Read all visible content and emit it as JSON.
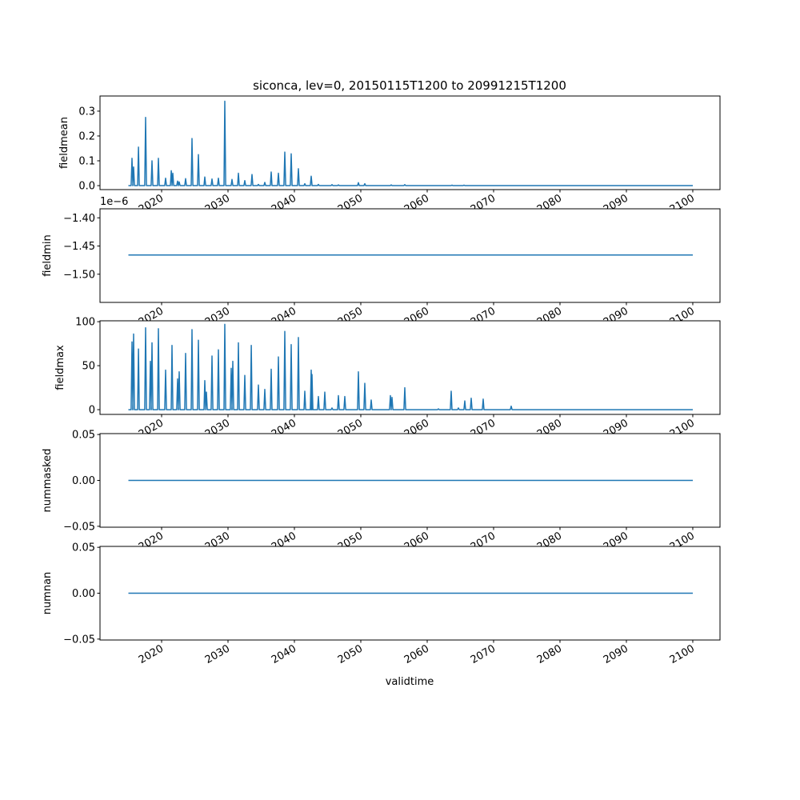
{
  "chart_data": {
    "type": "line",
    "title": "siconca, lev=0, 20150115T1200 to 20991215T1200",
    "xlabel": "validtime",
    "x_range": [
      2015.0,
      2100.0
    ],
    "xlim": [
      2010.72,
      2104.1
    ],
    "xticks": [
      2020,
      2030,
      2040,
      2050,
      2060,
      2070,
      2080,
      2090,
      2100
    ],
    "xtick_labels": [
      "2020",
      "2030",
      "2040",
      "2050",
      "2060",
      "2070",
      "2080",
      "2090",
      "2100"
    ],
    "line_color": "#1f77b4",
    "panels": [
      {
        "ylabel": "fieldmean",
        "ylim": [
          -0.016,
          0.361
        ],
        "yticks": [
          0.0,
          0.1,
          0.2,
          0.3
        ],
        "ytick_labels": [
          "0.0",
          "0.1",
          "0.2",
          "0.3"
        ],
        "baseline": 0,
        "peaks": [
          [
            2015.54,
            0.11
          ],
          [
            2015.78,
            0.075
          ],
          [
            2016.51,
            0.155
          ],
          [
            2017.59,
            0.275
          ],
          [
            2018.55,
            0.1
          ],
          [
            2019.52,
            0.11
          ],
          [
            2020.6,
            0.03
          ],
          [
            2021.45,
            0.06
          ],
          [
            2021.69,
            0.05
          ],
          [
            2022.41,
            0.018
          ],
          [
            2022.65,
            0.015
          ],
          [
            2023.61,
            0.028
          ],
          [
            2024.58,
            0.19
          ],
          [
            2025.54,
            0.125
          ],
          [
            2026.51,
            0.035
          ],
          [
            2027.59,
            0.027
          ],
          [
            2028.55,
            0.03
          ],
          [
            2029.52,
            0.34
          ],
          [
            2030.6,
            0.025
          ],
          [
            2031.57,
            0.05
          ],
          [
            2032.53,
            0.02
          ],
          [
            2033.61,
            0.045
          ],
          [
            2034.58,
            0.005
          ],
          [
            2035.54,
            0.013
          ],
          [
            2036.5,
            0.055
          ],
          [
            2037.59,
            0.05
          ],
          [
            2038.55,
            0.135
          ],
          [
            2039.52,
            0.128
          ],
          [
            2040.6,
            0.068
          ],
          [
            2041.57,
            0.008
          ],
          [
            2042.53,
            0.038
          ],
          [
            2043.61,
            0.005
          ],
          [
            2045.66,
            0.004
          ],
          [
            2046.63,
            0.003
          ],
          [
            2049.64,
            0.012
          ],
          [
            2050.6,
            0.008
          ],
          [
            2054.58,
            0.003
          ],
          [
            2056.63,
            0.004
          ],
          [
            2063.73,
            0.002
          ],
          [
            2065.54,
            0.002
          ]
        ]
      },
      {
        "ylabel": "fieldmin",
        "offset_label": "1e−6",
        "ylim": [
          -1.55,
          -1.384
        ],
        "yticks": [
          -1.4,
          -1.45,
          -1.5
        ],
        "ytick_labels": [
          "−1.40",
          "−1.45",
          "−1.50"
        ],
        "baseline": -1.466,
        "peaks": []
      },
      {
        "ylabel": "fieldmax",
        "ylim": [
          -5.4,
          101
        ],
        "yticks": [
          0,
          50,
          100
        ],
        "ytick_labels": [
          "0",
          "50",
          "100"
        ],
        "baseline": 0,
        "peaks": [
          [
            2015.54,
            77
          ],
          [
            2015.78,
            86
          ],
          [
            2016.51,
            69
          ],
          [
            2017.59,
            93
          ],
          [
            2018.31,
            55
          ],
          [
            2018.55,
            76
          ],
          [
            2019.52,
            92
          ],
          [
            2020.6,
            45
          ],
          [
            2021.57,
            73
          ],
          [
            2022.41,
            35
          ],
          [
            2022.65,
            43
          ],
          [
            2023.61,
            64
          ],
          [
            2024.58,
            91
          ],
          [
            2025.54,
            79
          ],
          [
            2026.51,
            33
          ],
          [
            2026.75,
            20
          ],
          [
            2027.59,
            61
          ],
          [
            2028.55,
            68
          ],
          [
            2029.52,
            97
          ],
          [
            2030.48,
            47
          ],
          [
            2030.72,
            55
          ],
          [
            2031.57,
            76
          ],
          [
            2032.53,
            39
          ],
          [
            2033.5,
            73
          ],
          [
            2034.58,
            28
          ],
          [
            2035.54,
            23
          ],
          [
            2036.5,
            46
          ],
          [
            2037.59,
            60
          ],
          [
            2038.55,
            89
          ],
          [
            2039.52,
            74
          ],
          [
            2040.6,
            82
          ],
          [
            2041.57,
            21
          ],
          [
            2042.53,
            45
          ],
          [
            2042.65,
            40
          ],
          [
            2043.61,
            15
          ],
          [
            2044.58,
            20
          ],
          [
            2045.66,
            2
          ],
          [
            2046.63,
            16
          ],
          [
            2047.59,
            15
          ],
          [
            2049.64,
            43
          ],
          [
            2050.6,
            30
          ],
          [
            2051.57,
            11
          ],
          [
            2054.46,
            16
          ],
          [
            2054.7,
            14
          ],
          [
            2056.63,
            25
          ],
          [
            2061.69,
            1
          ],
          [
            2063.61,
            21
          ],
          [
            2064.7,
            2
          ],
          [
            2065.66,
            10
          ],
          [
            2066.63,
            13
          ],
          [
            2068.43,
            12
          ],
          [
            2072.65,
            4
          ]
        ]
      },
      {
        "ylabel": "nummasked",
        "ylim": [
          -0.051,
          0.051
        ],
        "yticks": [
          -0.05,
          0.0,
          0.05
        ],
        "ytick_labels": [
          "−0.05",
          "0.00",
          "0.05"
        ],
        "baseline": 0,
        "peaks": []
      },
      {
        "ylabel": "numnan",
        "ylim": [
          -0.051,
          0.051
        ],
        "yticks": [
          -0.05,
          0.0,
          0.05
        ],
        "ytick_labels": [
          "−0.05",
          "0.00",
          "0.05"
        ],
        "baseline": 0,
        "peaks": []
      }
    ]
  }
}
